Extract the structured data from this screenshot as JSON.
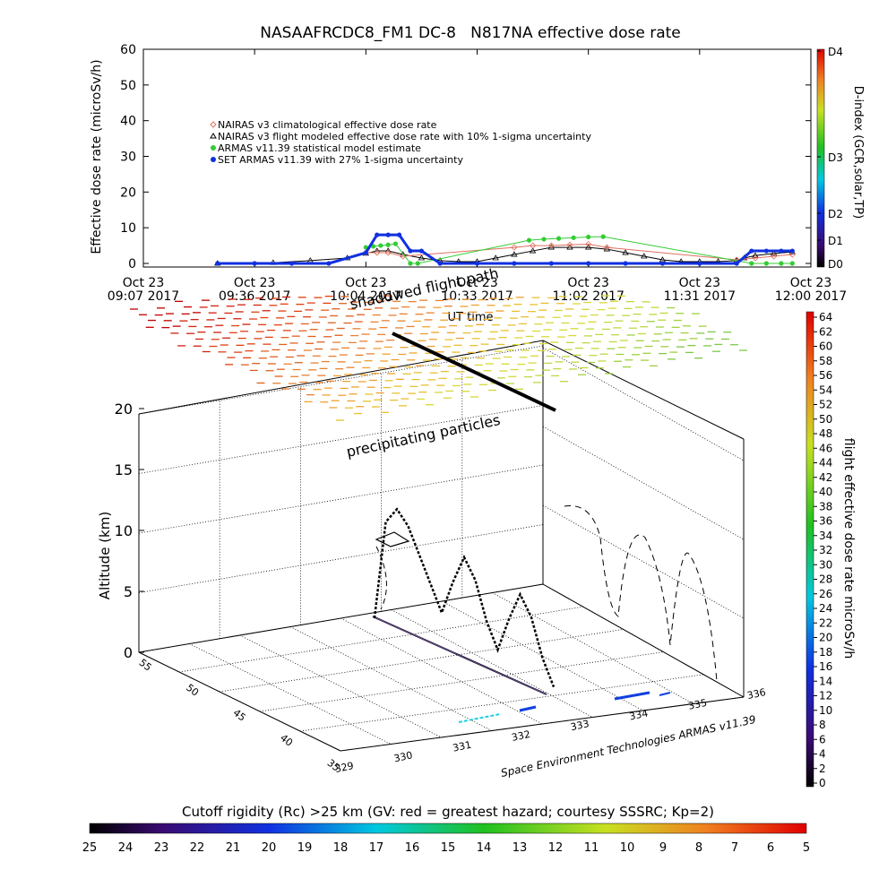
{
  "chart_data": [
    {
      "type": "line",
      "title": "NASAAFRCDC8_FM1 DC-8   N817NA effective dose rate",
      "ylabel": "Effective dose rate (microSv/h)",
      "xlabel": "UT time",
      "ylim": [
        0,
        60
      ],
      "yticks": [
        "0",
        "10",
        "20",
        "30",
        "40",
        "50",
        "60"
      ],
      "xtick_dates": [
        "Oct 23",
        "Oct 23",
        "Oct 23",
        "Oct 23",
        "Oct 23",
        "Oct 23",
        "Oct 23"
      ],
      "xtick_times": [
        "09:07 2017",
        "09:36 2017",
        "10:04 2017",
        "10:33 2017",
        "11:02 2017",
        "11:31 2017",
        "12:00 2017"
      ],
      "legend": [
        {
          "name": "NAIRAS v3 climatological effective dose rate",
          "color": "#e07060",
          "marker": "diamond"
        },
        {
          "name": "NAIRAS v3 flight modeled effective dose rate with 10% 1-sigma uncertainty",
          "color": "#000000",
          "marker": "triangle"
        },
        {
          "name": "ARMAS v11.39 statistical model estimate",
          "color": "#33cc33",
          "marker": "dot"
        },
        {
          "name": "SET ARMAS v11.39 with 27% 1-sigma uncertainty",
          "color": "#1030e0",
          "marker": "dot"
        }
      ],
      "series": [
        {
          "name": "NAIRAS v3 flight modeled effective dose rate with 10% 1-sigma uncertainty",
          "x": [
            20,
            35,
            45,
            55,
            60,
            63,
            66,
            70,
            75,
            80,
            85,
            90,
            95,
            100,
            105,
            110,
            115,
            120,
            125,
            130,
            135,
            140,
            145,
            150,
            155,
            160,
            162,
            165,
            170,
            175
          ],
          "y": [
            0,
            0.2,
            0.8,
            1.5,
            2.8,
            3.5,
            3.5,
            2.5,
            1.5,
            0.8,
            0.5,
            0.5,
            1.5,
            2.5,
            3.5,
            4.5,
            4.5,
            4.5,
            4,
            3,
            2,
            1,
            0.5,
            0.5,
            0.5,
            0.8,
            1.5,
            2.2,
            2.8,
            3.2
          ]
        },
        {
          "name": "NAIRAS v3 climatological effective dose rate",
          "x": [
            60,
            63,
            66,
            70,
            100,
            105,
            110,
            115,
            120,
            125,
            160,
            165,
            170,
            175
          ],
          "y": [
            3,
            3,
            3,
            2,
            4.5,
            5,
            5,
            5.2,
            5.4,
            4.5,
            1,
            1.5,
            2,
            2.5
          ]
        },
        {
          "name": "ARMAS v11.39 statistical model estimate",
          "x": [
            60,
            62,
            64,
            66,
            68,
            72,
            74,
            104,
            108,
            112,
            116,
            120,
            124,
            164,
            168,
            172,
            175
          ],
          "y": [
            4.5,
            4.8,
            5,
            5.2,
            5.5,
            0,
            0,
            6.5,
            6.8,
            7,
            7.2,
            7.4,
            7.5,
            0,
            0,
            0,
            0
          ]
        },
        {
          "name": "SET ARMAS v11.39 with 27% 1-sigma uncertainty",
          "x": [
            20,
            30,
            40,
            50,
            60,
            63,
            66,
            69,
            72,
            75,
            80,
            90,
            100,
            110,
            120,
            130,
            140,
            150,
            160,
            164,
            168,
            172,
            175
          ],
          "y": [
            0,
            0,
            0,
            0,
            3,
            8,
            8,
            8,
            3.5,
            3.5,
            0,
            0,
            0,
            0,
            0,
            0,
            0,
            0,
            0,
            3.5,
            3.5,
            3.5,
            3.5
          ]
        }
      ]
    },
    {
      "type": "scatter",
      "subtype": "3d-flight-path",
      "zlabel": "Altitude (km)",
      "zticks": [
        "0",
        "5",
        "10",
        "15",
        "20"
      ],
      "lat_ticks": [
        "35",
        "40",
        "45",
        "50",
        "55"
      ],
      "lon_ticks": [
        "329",
        "330",
        "331",
        "332",
        "333",
        "334",
        "335",
        "336"
      ],
      "annotations": [
        "shadowed flight path",
        "precipitating particles"
      ],
      "credit": "Space Environment Technologies ARMAS v11.39",
      "flight_altitude_km": [
        0,
        8.5,
        10,
        9,
        7,
        5,
        3,
        6,
        8.5,
        7,
        4,
        2,
        5,
        7.5,
        6,
        3,
        1
      ]
    },
    {
      "type": "heatmap",
      "name": "colorbar-dose",
      "ylabel": "flight effective dose rate microSv/h",
      "range": [
        0,
        64
      ],
      "ticks": [
        "0",
        "2",
        "4",
        "6",
        "8",
        "10",
        "12",
        "14",
        "16",
        "18",
        "20",
        "22",
        "24",
        "26",
        "28",
        "30",
        "32",
        "34",
        "36",
        "38",
        "40",
        "42",
        "44",
        "46",
        "48",
        "50",
        "52",
        "54",
        "56",
        "58",
        "60",
        "62",
        "64"
      ]
    },
    {
      "type": "heatmap",
      "name": "colorbar-dindex",
      "ylabel": "D-index (GCR,solar,TP)",
      "ticks": [
        "D0",
        "D1",
        "D2",
        "D3",
        "D4"
      ]
    },
    {
      "type": "heatmap",
      "name": "colorbar-cutoff",
      "xlabel": "Cutoff rigidity (Rc) >25 km (GV: red = greatest hazard; courtesy SSSRC; Kp=2)",
      "ticks": [
        "25",
        "24",
        "23",
        "22",
        "21",
        "20",
        "19",
        "18",
        "17",
        "16",
        "15",
        "14",
        "13",
        "12",
        "11",
        "10",
        "9",
        "8",
        "7",
        "6",
        "5"
      ]
    }
  ]
}
